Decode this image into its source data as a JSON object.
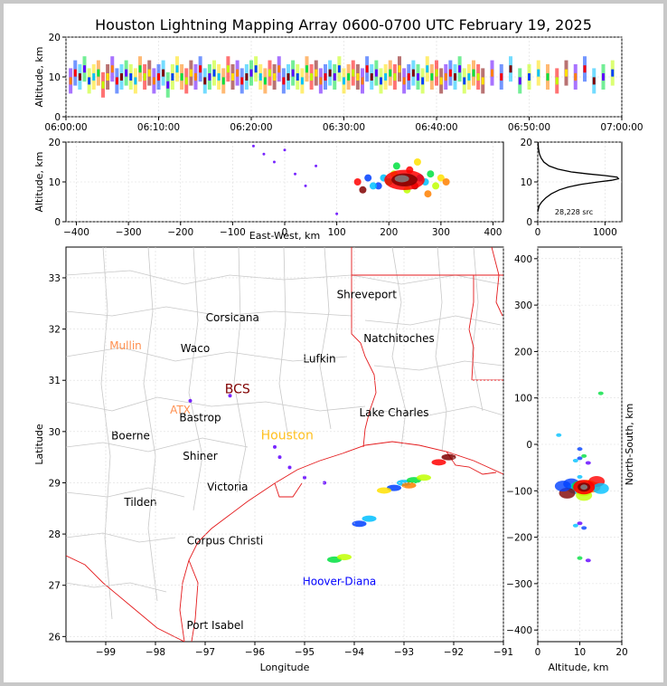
{
  "chart_data": [
    {
      "type": "scatter",
      "panel": "altitude-time",
      "title": "Houston Lightning Mapping Array 0600-0700 UTC February 19, 2025",
      "xlabel": "",
      "ylabel": "Altitude, km",
      "x_ticks": [
        "06:00:00",
        "06:10:00",
        "06:20:00",
        "06:30:00",
        "06:40:00",
        "06:50:00",
        "07:00:00"
      ],
      "xlim": [
        0,
        60
      ],
      "ylim": [
        0,
        20
      ],
      "y_ticks": [
        "0",
        "10",
        "20"
      ],
      "points": [
        [
          0.5,
          9
        ],
        [
          1,
          11
        ],
        [
          1.5,
          10
        ],
        [
          2,
          12
        ],
        [
          2.5,
          9
        ],
        [
          3,
          10
        ],
        [
          3.5,
          11
        ],
        [
          4,
          8
        ],
        [
          4.5,
          10
        ],
        [
          5,
          12
        ],
        [
          5.5,
          9
        ],
        [
          6,
          10
        ],
        [
          6.5,
          11
        ],
        [
          7,
          10
        ],
        [
          7.5,
          9
        ],
        [
          8,
          12
        ],
        [
          8.5,
          10
        ],
        [
          9,
          11
        ],
        [
          9.5,
          9
        ],
        [
          10,
          10
        ],
        [
          10.5,
          11
        ],
        [
          11,
          8
        ],
        [
          11.5,
          10
        ],
        [
          12,
          12
        ],
        [
          12.5,
          10
        ],
        [
          13,
          9
        ],
        [
          13.5,
          11
        ],
        [
          14,
          10
        ],
        [
          14.5,
          12
        ],
        [
          15,
          9
        ],
        [
          15.5,
          10
        ],
        [
          16,
          11
        ],
        [
          16.5,
          10
        ],
        [
          17,
          9
        ],
        [
          17.5,
          12
        ],
        [
          18,
          10
        ],
        [
          18.5,
          11
        ],
        [
          19,
          9
        ],
        [
          19.5,
          10
        ],
        [
          20,
          11
        ],
        [
          20.5,
          12
        ],
        [
          21,
          10
        ],
        [
          21.5,
          9
        ],
        [
          22,
          11
        ],
        [
          22.5,
          10
        ],
        [
          23,
          12
        ],
        [
          23.5,
          9
        ],
        [
          24,
          10
        ],
        [
          24.5,
          11
        ],
        [
          25,
          10
        ],
        [
          25.5,
          9
        ],
        [
          26,
          12
        ],
        [
          26.5,
          10
        ],
        [
          27,
          11
        ],
        [
          27.5,
          9
        ],
        [
          28,
          10
        ],
        [
          28.5,
          11
        ],
        [
          29,
          10
        ],
        [
          29.5,
          12
        ],
        [
          30,
          9
        ],
        [
          30.5,
          10
        ],
        [
          31,
          11
        ],
        [
          31.5,
          10
        ],
        [
          32,
          9
        ],
        [
          32.5,
          12
        ],
        [
          33,
          10
        ],
        [
          33.5,
          11
        ],
        [
          34,
          9
        ],
        [
          34.5,
          10
        ],
        [
          35,
          11
        ],
        [
          35.5,
          10
        ],
        [
          36,
          12
        ],
        [
          36.5,
          9
        ],
        [
          37,
          10
        ],
        [
          37.5,
          11
        ],
        [
          38,
          10
        ],
        [
          38.5,
          9
        ],
        [
          39,
          12
        ],
        [
          39.5,
          10
        ],
        [
          40,
          11
        ],
        [
          40.5,
          9
        ],
        [
          41,
          10
        ],
        [
          41.5,
          11
        ],
        [
          42,
          10
        ],
        [
          42.5,
          12
        ],
        [
          43,
          9
        ],
        [
          43.5,
          10
        ],
        [
          44,
          11
        ],
        [
          44.5,
          10
        ],
        [
          45,
          9
        ],
        [
          46,
          11
        ],
        [
          47,
          10
        ],
        [
          48,
          12
        ],
        [
          49,
          9
        ],
        [
          50,
          10
        ],
        [
          51,
          11
        ],
        [
          52,
          10
        ],
        [
          53,
          9
        ],
        [
          54,
          11
        ],
        [
          55,
          10
        ],
        [
          56,
          12
        ],
        [
          57,
          9
        ],
        [
          58,
          10
        ],
        [
          59,
          11
        ]
      ]
    },
    {
      "type": "scatter",
      "panel": "altitude-east-west",
      "xlabel": "East-West, km",
      "ylabel": "Altitude, km",
      "x_ticks": [
        "−400",
        "−300",
        "−200",
        "−100",
        "0",
        "100",
        "200",
        "300",
        "400"
      ],
      "xlim": [
        -420,
        420
      ],
      "ylim": [
        0,
        20
      ],
      "y_ticks": [
        "0",
        "10",
        "20"
      ],
      "points": [
        [
          180,
          9
        ],
        [
          190,
          11
        ],
        [
          200,
          10
        ],
        [
          210,
          12
        ],
        [
          220,
          11
        ],
        [
          230,
          10
        ],
        [
          240,
          13
        ],
        [
          250,
          9
        ],
        [
          260,
          11
        ],
        [
          270,
          10
        ],
        [
          280,
          12
        ],
        [
          290,
          9
        ],
        [
          300,
          11
        ],
        [
          310,
          10
        ],
        [
          140,
          10
        ],
        [
          150,
          8
        ],
        [
          160,
          11
        ],
        [
          170,
          9
        ],
        [
          215,
          14
        ],
        [
          235,
          8
        ],
        [
          255,
          15
        ],
        [
          275,
          7
        ],
        [
          -20,
          15
        ],
        [
          0,
          18
        ],
        [
          20,
          12
        ],
        [
          -40,
          17
        ],
        [
          40,
          9
        ],
        [
          100,
          2
        ],
        [
          60,
          14
        ],
        [
          -60,
          19
        ]
      ]
    },
    {
      "type": "line",
      "panel": "altitude-histogram",
      "x_ticks": [
        "0",
        "1000"
      ],
      "xlim": [
        0,
        1250
      ],
      "ylim": [
        0,
        20
      ],
      "y_ticks": [
        "0",
        "10",
        "20"
      ],
      "annotation": "28,228 src",
      "points": [
        [
          0,
          2.5
        ],
        [
          20,
          4
        ],
        [
          60,
          5
        ],
        [
          120,
          6
        ],
        [
          200,
          7
        ],
        [
          320,
          8
        ],
        [
          450,
          8.7
        ],
        [
          650,
          9.4
        ],
        [
          900,
          10
        ],
        [
          1100,
          10.4
        ],
        [
          1200,
          10.8
        ],
        [
          1180,
          11.2
        ],
        [
          1000,
          11.6
        ],
        [
          750,
          12
        ],
        [
          500,
          12.5
        ],
        [
          300,
          13.2
        ],
        [
          170,
          14
        ],
        [
          90,
          15
        ],
        [
          50,
          16
        ],
        [
          25,
          17
        ],
        [
          10,
          18.5
        ],
        [
          5,
          20
        ]
      ]
    },
    {
      "type": "scatter",
      "panel": "plan-view-map",
      "xlabel": "Longitude",
      "ylabel": "Latitude",
      "x_ticks": [
        "−99",
        "−98",
        "−97",
        "−96",
        "−95",
        "−94",
        "−93",
        "−92",
        "−91"
      ],
      "y_ticks": [
        "26",
        "27",
        "28",
        "29",
        "30",
        "31",
        "32",
        "33"
      ],
      "xlim": [
        -99.8,
        -91
      ],
      "ylim": [
        25.9,
        33.6
      ],
      "cities": [
        {
          "name": "Shreveport",
          "lon": -93.75,
          "lat": 32.6,
          "color": "#000000"
        },
        {
          "name": "Corsicana",
          "lon": -96.45,
          "lat": 32.15,
          "color": "#000000"
        },
        {
          "name": "Natchitoches",
          "lon": -93.1,
          "lat": 31.75,
          "color": "#000000"
        },
        {
          "name": "Mullin",
          "lon": -98.6,
          "lat": 31.6,
          "color": "#ff9050"
        },
        {
          "name": "Waco",
          "lon": -97.2,
          "lat": 31.55,
          "color": "#000000"
        },
        {
          "name": "Lufkin",
          "lon": -94.7,
          "lat": 31.35,
          "color": "#000000"
        },
        {
          "name": "BCS",
          "lon": -96.35,
          "lat": 30.75,
          "color": "#800000"
        },
        {
          "name": "ATX",
          "lon": -97.5,
          "lat": 30.35,
          "color": "#ff9050"
        },
        {
          "name": "Lake Charles",
          "lon": -93.2,
          "lat": 30.3,
          "color": "#000000"
        },
        {
          "name": "Bastrop",
          "lon": -97.1,
          "lat": 30.2,
          "color": "#000000"
        },
        {
          "name": "Houston",
          "lon": -95.35,
          "lat": 29.85,
          "color": "#ffc020"
        },
        {
          "name": "Boerne",
          "lon": -98.5,
          "lat": 29.85,
          "color": "#000000"
        },
        {
          "name": "Shiner",
          "lon": -97.1,
          "lat": 29.45,
          "color": "#000000"
        },
        {
          "name": "Victoria",
          "lon": -96.55,
          "lat": 28.85,
          "color": "#000000"
        },
        {
          "name": "Tilden",
          "lon": -98.3,
          "lat": 28.55,
          "color": "#000000"
        },
        {
          "name": "Corpus Christi",
          "lon": -96.6,
          "lat": 27.8,
          "color": "#000000"
        },
        {
          "name": "Hoover-Diana",
          "lon": -94.3,
          "lat": 27.0,
          "color": "#0000ff"
        },
        {
          "name": "Port Isabel",
          "lon": -96.8,
          "lat": 26.15,
          "color": "#000000"
        }
      ],
      "points": [
        [
          -93.2,
          28.9
        ],
        [
          -93.0,
          29.0
        ],
        [
          -92.8,
          29.05
        ],
        [
          -92.6,
          29.1
        ],
        [
          -93.4,
          28.85
        ],
        [
          -92.9,
          28.95
        ],
        [
          -92.3,
          29.4
        ],
        [
          -92.1,
          29.5
        ],
        [
          -93.9,
          28.2
        ],
        [
          -93.7,
          28.3
        ],
        [
          -94.4,
          27.5
        ],
        [
          -94.2,
          27.55
        ],
        [
          -95.5,
          29.5
        ],
        [
          -95.3,
          29.3
        ],
        [
          -95.6,
          29.7
        ],
        [
          -95.0,
          29.1
        ],
        [
          -94.6,
          29.0
        ],
        [
          -96.5,
          30.7
        ],
        [
          -97.3,
          30.6
        ]
      ]
    },
    {
      "type": "scatter",
      "panel": "north-south-altitude",
      "xlabel": "Altitude, km",
      "ylabel": "North-South, km",
      "x_ticks": [
        "0",
        "10",
        "20"
      ],
      "y_ticks": [
        "−400",
        "−300",
        "−200",
        "−100",
        "0",
        "100",
        "200",
        "300",
        "400"
      ],
      "xlim": [
        0,
        20
      ],
      "ylim": [
        -425,
        425
      ],
      "points": [
        [
          8,
          -85
        ],
        [
          9,
          -95
        ],
        [
          10,
          -90
        ],
        [
          11,
          -100
        ],
        [
          12,
          -88
        ],
        [
          13,
          -92
        ],
        [
          14,
          -80
        ],
        [
          7,
          -105
        ],
        [
          6,
          -90
        ],
        [
          15,
          -95
        ],
        [
          10,
          -70
        ],
        [
          11,
          -110
        ],
        [
          12,
          -40
        ],
        [
          10,
          -30
        ],
        [
          9,
          -35
        ],
        [
          11,
          -25
        ],
        [
          10,
          -170
        ],
        [
          11,
          -180
        ],
        [
          9,
          -175
        ],
        [
          10,
          -245
        ],
        [
          12,
          -250
        ],
        [
          10,
          -10
        ],
        [
          5,
          20
        ],
        [
          15,
          110
        ]
      ]
    }
  ],
  "colors": {
    "state_border": "#e41a1c",
    "county_line": "#c8c8c8",
    "source_palette": [
      "#6000ff",
      "#0040ff",
      "#00c0ff",
      "#00e040",
      "#c0ff00",
      "#ffe000",
      "#ff8000",
      "#ff0000",
      "#800000",
      "#808080",
      "#ffffff"
    ]
  }
}
